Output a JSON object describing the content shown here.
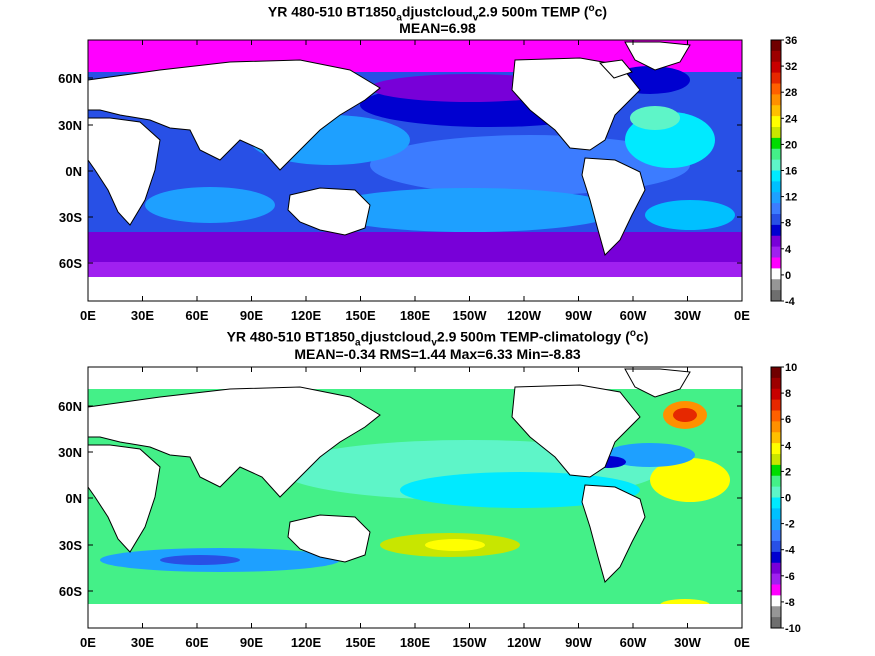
{
  "chart_data": [
    {
      "type": "heatmap",
      "title_parts": {
        "pre": "YR 480-510 BT1850",
        "sub1": "a",
        "mid": "djustcloud",
        "sub2": "v",
        "post": "2.9 500m TEMP (",
        "sup": "o",
        "end": "c)"
      },
      "subtitle": "MEAN=6.98",
      "xticks": [
        "0E",
        "30E",
        "60E",
        "90E",
        "120E",
        "150E",
        "180E",
        "150W",
        "120W",
        "90W",
        "60W",
        "30W",
        "0E"
      ],
      "yticks": [
        "60N",
        "30N",
        "0N",
        "30S",
        "60S"
      ],
      "colorbar": {
        "ticks": [
          "36",
          "32",
          "28",
          "24",
          "20",
          "16",
          "12",
          "8",
          "4",
          "0",
          "-4"
        ],
        "colors": [
          "#700000",
          "#9c0000",
          "#c80000",
          "#e62800",
          "#ff6000",
          "#ff9000",
          "#ffc000",
          "#ffff00",
          "#c8e600",
          "#00dc00",
          "#44f088",
          "#5ef5c8",
          "#00eaff",
          "#00c0ff",
          "#1ea0ff",
          "#3c7cff",
          "#2850e6",
          "#0000d0",
          "#7800d8",
          "#a020f0",
          "#ff00ff",
          "#ffffff",
          "#969696",
          "#6e6e6e"
        ]
      },
      "mean": 6.98
    },
    {
      "type": "heatmap",
      "title_parts": {
        "pre": "YR 480-510 BT1850",
        "sub1": "a",
        "mid": "djustcloud",
        "sub2": "v",
        "post": "2.9 500m TEMP-climatology (",
        "sup": "o",
        "end": "c)"
      },
      "subtitle": "MEAN=-0.34   RMS=1.44   Max=6.33   Min=-8.83",
      "xticks": [
        "0E",
        "30E",
        "60E",
        "90E",
        "120E",
        "150E",
        "180E",
        "150W",
        "120W",
        "90W",
        "60W",
        "30W",
        "0E"
      ],
      "yticks": [
        "60N",
        "30N",
        "0N",
        "30S",
        "60S"
      ],
      "colorbar": {
        "ticks": [
          "10",
          "8",
          "6",
          "4",
          "2",
          "0",
          "-2",
          "-4",
          "-6",
          "-8",
          "-10"
        ],
        "colors": [
          "#700000",
          "#9c0000",
          "#c80000",
          "#e62800",
          "#ff6000",
          "#ff9000",
          "#ffc000",
          "#ffff00",
          "#c8e600",
          "#00dc00",
          "#44f088",
          "#5ef5c8",
          "#00eaff",
          "#00c0ff",
          "#1ea0ff",
          "#3c7cff",
          "#2850e6",
          "#0000d0",
          "#7800d8",
          "#a020f0",
          "#ff00ff",
          "#ffffff",
          "#969696",
          "#6e6e6e"
        ]
      },
      "mean": -0.34,
      "rms": 1.44,
      "max": 6.33,
      "min": -8.83
    }
  ]
}
